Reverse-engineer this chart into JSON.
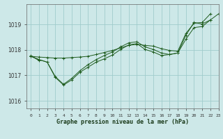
{
  "title": "Graphe pression niveau de la mer (hPa)",
  "bg_color": "#cde8e8",
  "grid_color": "#a0cccc",
  "line_color": "#1e5c1e",
  "marker_color": "#1e5c1e",
  "xlim": [
    -0.5,
    23
  ],
  "ylim": [
    1015.7,
    1019.8
  ],
  "yticks": [
    1016,
    1017,
    1018,
    1019
  ],
  "xtick_labels": [
    "0",
    "1",
    "2",
    "3",
    "4",
    "5",
    "6",
    "7",
    "8",
    "9",
    "10",
    "11",
    "12",
    "13",
    "14",
    "15",
    "16",
    "17",
    "18",
    "19",
    "20",
    "21",
    "22",
    "23"
  ],
  "series": [
    [
      1017.75,
      1017.72,
      1017.7,
      1017.68,
      1017.68,
      1017.7,
      1017.72,
      1017.75,
      1017.82,
      1017.9,
      1017.98,
      1018.08,
      1018.18,
      1018.22,
      1018.18,
      1018.15,
      1018.05,
      1017.98,
      1017.95,
      1018.65,
      1019.05,
      1019.08,
      1019.42,
      null
    ],
    [
      1017.78,
      1017.58,
      null,
      null,
      null,
      null,
      null,
      null,
      null,
      null,
      null,
      null,
      null,
      null,
      null,
      null,
      null,
      null,
      null,
      null,
      null,
      null,
      null,
      null
    ],
    [
      1017.75,
      1017.62,
      1017.52,
      1016.92,
      1016.62,
      1016.82,
      1017.12,
      1017.32,
      1017.52,
      1017.65,
      1017.8,
      1018.02,
      1018.2,
      1018.25,
      1018.02,
      1017.92,
      1017.78,
      1017.82,
      1017.88,
      1018.58,
      1019.08,
      1019.02,
      1019.18,
      null
    ],
    [
      1017.75,
      1017.62,
      1017.52,
      1016.95,
      1016.65,
      1016.88,
      1017.18,
      1017.42,
      1017.62,
      1017.78,
      1017.92,
      1018.12,
      1018.28,
      1018.32,
      1018.12,
      1018.02,
      1017.88,
      1017.82,
      1017.88,
      1018.42,
      1018.88,
      1018.92,
      1019.18,
      1019.42
    ]
  ]
}
